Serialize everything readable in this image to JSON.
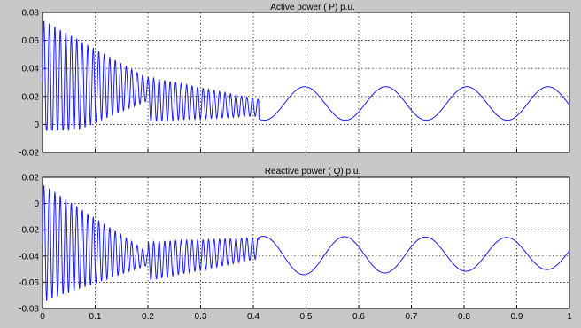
{
  "colors": {
    "figure_bg": "#c8c8c8",
    "axes_bg": "#ffffff",
    "line": "#1a1aff"
  },
  "chart_data": [
    {
      "type": "line",
      "title": "Active power ( P) p.u.",
      "xlim": [
        0,
        1
      ],
      "ylim": [
        -0.02,
        0.08
      ],
      "xticks": [
        0,
        0.1,
        0.2,
        0.3,
        0.4,
        0.5,
        0.6,
        0.7,
        0.8,
        0.9,
        1
      ],
      "xtick_labels": [],
      "yticks": [
        -0.02,
        0,
        0.02,
        0.04,
        0.06,
        0.08
      ],
      "ytick_labels": [
        "-0.02",
        "0",
        "0.02",
        "0.04",
        "0.06",
        "0.08"
      ],
      "grid": true,
      "series": [
        {
          "color": "#1a1aff",
          "segments": [
            {
              "from": 0.0,
              "to": 0.2,
              "base": [
                0.03,
                0.025
              ],
              "amp": [
                0.045,
                0.008
              ],
              "freq": 96,
              "low": 0
            },
            {
              "from": 0.2,
              "to": 0.41,
              "base": [
                0.018,
                0.012
              ],
              "amp": [
                0.016,
                0.006
              ],
              "freq": 96,
              "low": 0
            },
            {
              "from": 0.41,
              "to": 1.0,
              "base": [
                0.015,
                0.015
              ],
              "amp": [
                0.012,
                0.012
              ],
              "freq": 6.5,
              "phase": 0.1,
              "low": 0
            }
          ],
          "x": [
            0.0,
            0.005,
            0.01,
            0.015,
            0.02,
            0.03,
            0.05,
            0.1,
            0.15,
            0.2,
            0.25,
            0.3,
            0.35,
            0.4,
            0.42,
            0.45,
            0.5,
            0.55,
            0.6,
            0.65,
            0.7,
            0.75,
            0.8,
            0.85,
            0.9,
            0.95,
            1.0
          ],
          "y": [
            0.0,
            0.075,
            -0.005,
            0.07,
            0.0,
            0.065,
            0.055,
            0.045,
            0.04,
            0.035,
            0.03,
            0.03,
            0.02,
            0.018,
            0.02,
            0.027,
            0.035,
            0.02,
            0.003,
            0.015,
            0.027,
            0.015,
            0.003,
            0.015,
            0.027,
            0.015,
            0.002
          ]
        }
      ]
    },
    {
      "type": "line",
      "title": "Reactive power ( Q) p.u.",
      "xlim": [
        0,
        1
      ],
      "ylim": [
        -0.08,
        0.02
      ],
      "xticks": [
        0,
        0.1,
        0.2,
        0.3,
        0.4,
        0.5,
        0.6,
        0.7,
        0.8,
        0.9,
        1
      ],
      "xtick_labels": [
        "0",
        "0.1",
        "0.2",
        "0.3",
        "0.4",
        "0.5",
        "0.6",
        "0.7",
        "0.8",
        "0.9",
        "1"
      ],
      "yticks": [
        -0.08,
        -0.06,
        -0.04,
        -0.02,
        0,
        0.02
      ],
      "ytick_labels": [
        "-0.08",
        "-0.06",
        "-0.04",
        "-0.02",
        "0",
        "0.02"
      ],
      "grid": true,
      "series": [
        {
          "color": "#1a1aff",
          "segments": [
            {
              "from": 0.0,
              "to": 0.2,
              "base": [
                -0.03,
                -0.042
              ],
              "amp": [
                0.045,
                0.005
              ],
              "freq": 96
            },
            {
              "from": 0.2,
              "to": 0.41,
              "base": [
                -0.044,
                -0.034
              ],
              "amp": [
                0.015,
                0.008
              ],
              "freq": 96
            },
            {
              "from": 0.41,
              "to": 1.0,
              "base": [
                -0.04,
                -0.038
              ],
              "amp": [
                0.015,
                0.012
              ],
              "freq": 6.5,
              "phase": 3.3
            }
          ],
          "x": [
            0.0,
            0.005,
            0.01,
            0.015,
            0.02,
            0.05,
            0.1,
            0.15,
            0.2,
            0.25,
            0.3,
            0.35,
            0.4,
            0.45,
            0.5,
            0.56,
            0.6,
            0.65,
            0.7,
            0.75,
            0.8,
            0.85,
            0.9,
            0.95,
            1.0
          ],
          "y": [
            -0.06,
            0.01,
            -0.075,
            0.005,
            -0.07,
            -0.035,
            -0.04,
            -0.043,
            -0.042,
            -0.045,
            -0.04,
            -0.038,
            -0.038,
            -0.02,
            -0.04,
            -0.055,
            -0.04,
            -0.026,
            -0.04,
            -0.052,
            -0.026,
            -0.04,
            -0.052,
            -0.026,
            -0.05
          ]
        }
      ]
    }
  ]
}
